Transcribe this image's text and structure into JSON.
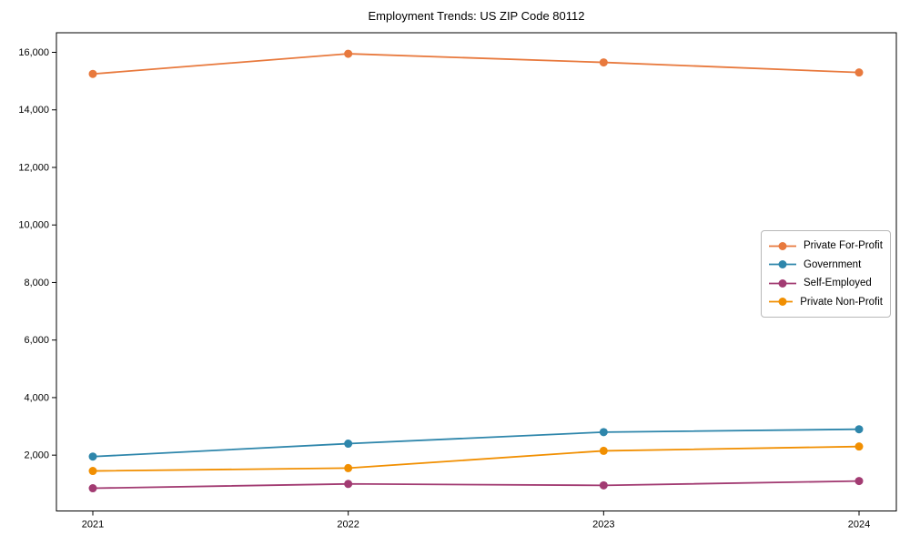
{
  "title": "Employment Trends: US ZIP Code 80112",
  "chart_data": {
    "type": "line",
    "title": "Employment Trends: US ZIP Code 80112",
    "xlabel": "",
    "ylabel": "",
    "x": [
      "2021",
      "2022",
      "2023",
      "2024"
    ],
    "series": [
      {
        "name": "Private For-Profit",
        "color": "#E8793D",
        "values": [
          15250,
          15950,
          15650,
          15300
        ]
      },
      {
        "name": "Government",
        "color": "#2E86AB",
        "values": [
          1950,
          2400,
          2800,
          2900
        ]
      },
      {
        "name": "Self-Employed",
        "color": "#A23B72",
        "values": [
          850,
          1000,
          950,
          1100
        ]
      },
      {
        "name": "Private Non-Profit",
        "color": "#F18F01",
        "values": [
          1450,
          1550,
          2150,
          2300
        ]
      }
    ],
    "ylim": [
      60,
      16680
    ],
    "y_ticks": [
      2000,
      4000,
      6000,
      8000,
      10000,
      12000,
      14000,
      16000
    ],
    "grid": false,
    "legend_position": "center right",
    "marker": "circle",
    "axis_color": "#000000"
  }
}
